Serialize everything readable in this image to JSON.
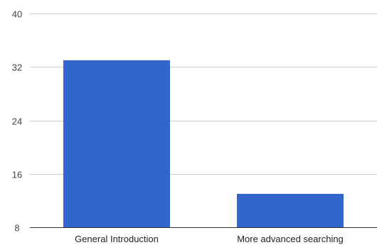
{
  "chart_data": {
    "type": "bar",
    "categories": [
      "General Introduction",
      "More advanced searching"
    ],
    "values": [
      33,
      13
    ],
    "ylim": [
      8,
      40
    ],
    "yticks": [
      8,
      16,
      24,
      32,
      40
    ],
    "title": "",
    "xlabel": "",
    "ylabel": "",
    "grid": true,
    "legend": "none",
    "colors": {
      "bar": "#3366cc",
      "grid": "#cccccc",
      "baseline": "#333333"
    }
  }
}
